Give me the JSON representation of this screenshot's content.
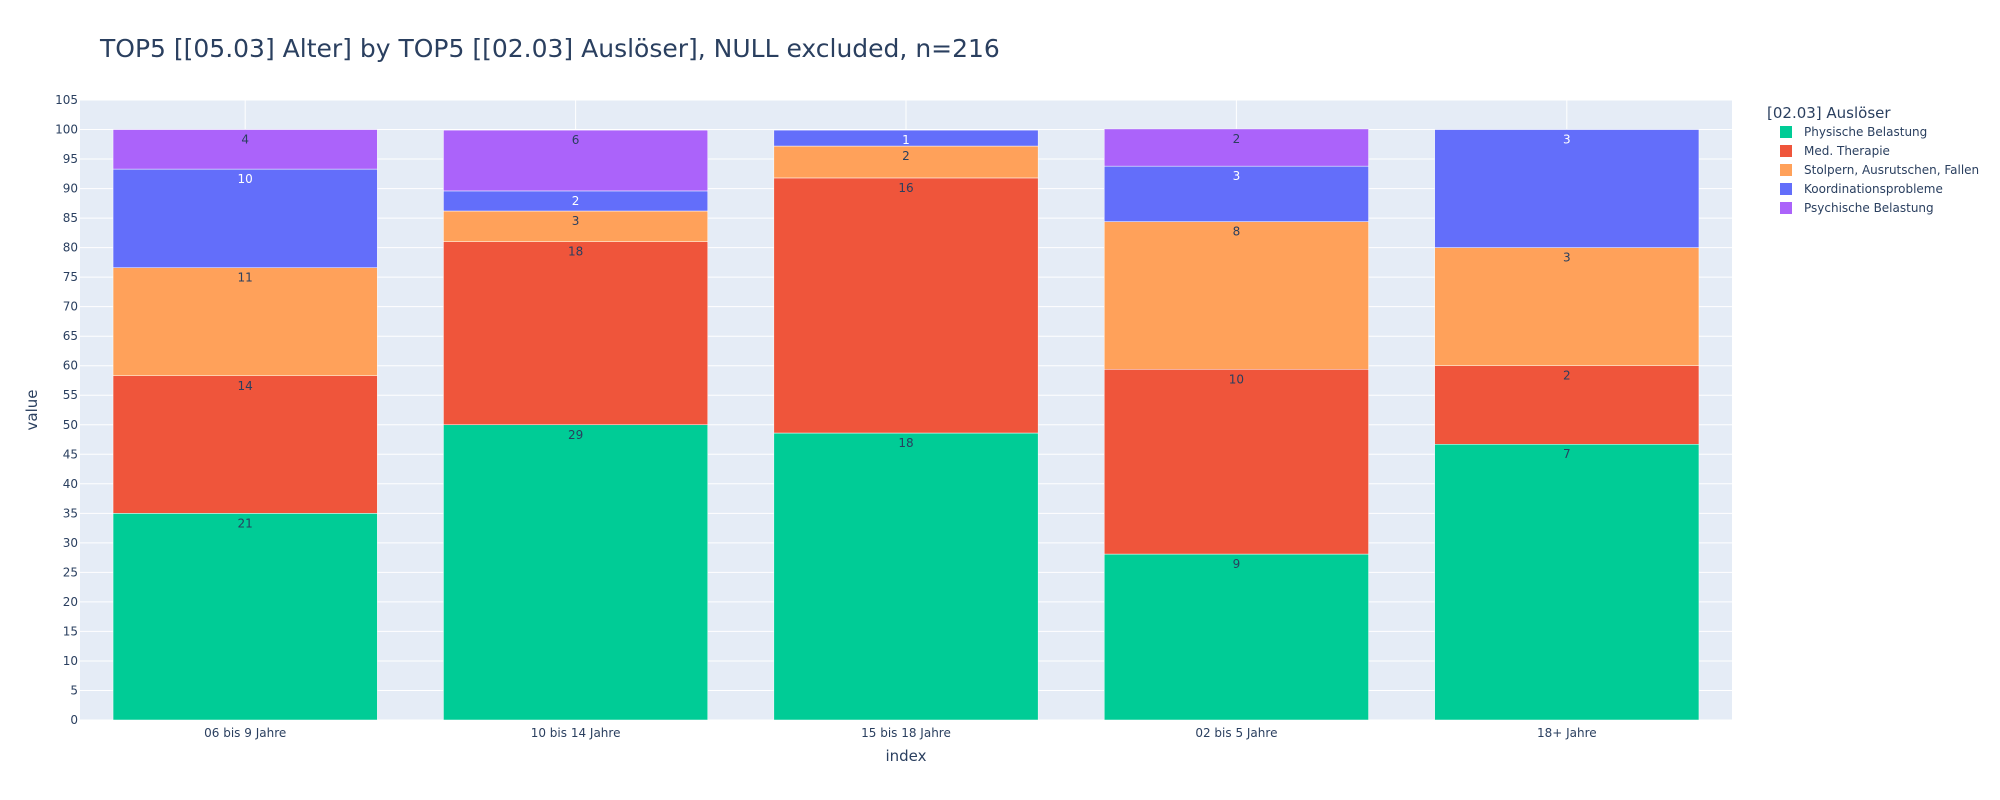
{
  "chart_data": {
    "type": "bar",
    "stacked": true,
    "title": "TOP5 [[05.03] Alter] by TOP5 [[02.03] Auslöser], NULL excluded, n=216",
    "xlabel": "index",
    "ylabel": "value",
    "ylim": [
      0,
      105
    ],
    "ytick_step": 5,
    "grid": true,
    "legend_title": "[02.03] Auslöser",
    "legend_position": "top-right",
    "categories": [
      "06 bis 9 Jahre",
      "10 bis 14 Jahre",
      "15 bis 18 Jahre",
      "02 bis 5 Jahre",
      "18+ Jahre"
    ],
    "series": [
      {
        "name": "Physische Belastung",
        "color": "#00cc96",
        "values": [
          35.0,
          50.0,
          48.6,
          28.1,
          46.7
        ],
        "labels": [
          "21",
          "29",
          "18",
          "9",
          "7"
        ]
      },
      {
        "name": "Med. Therapie",
        "color": "#ef553b",
        "values": [
          23.3,
          31.0,
          43.2,
          31.3,
          13.3
        ],
        "labels": [
          "14",
          "18",
          "16",
          "10",
          "2"
        ]
      },
      {
        "name": "Stolpern, Ausrutschen, Fallen",
        "color": "#ffa15a",
        "values": [
          18.3,
          5.2,
          5.4,
          25.0,
          20.0
        ],
        "labels": [
          "11",
          "3",
          "2",
          "8",
          "3"
        ]
      },
      {
        "name": "Koordinationsprobleme",
        "color": "#636efa",
        "values": [
          16.7,
          3.4,
          2.7,
          9.4,
          20.0
        ],
        "labels": [
          "10",
          "2",
          "1",
          "3",
          "3"
        ]
      },
      {
        "name": "Psychische Belastung",
        "color": "#ab63fa",
        "values": [
          6.7,
          10.3,
          0,
          6.3,
          0
        ],
        "labels": [
          "4",
          "6",
          "",
          "2",
          ""
        ]
      }
    ],
    "colors": {
      "plot_background": "#e5ecf6",
      "gridline": "#ffffff",
      "text": "#2a3f5f"
    }
  }
}
